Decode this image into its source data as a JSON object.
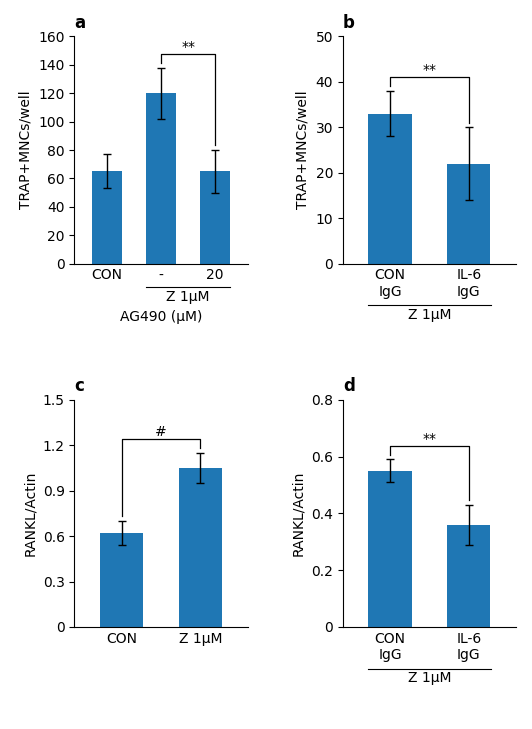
{
  "chart_data": [
    {
      "type": "bar",
      "title": "a",
      "categories": [
        "CON",
        "-",
        "20"
      ],
      "values": [
        65,
        120,
        65
      ],
      "errors": [
        12,
        18,
        15
      ],
      "ylabel": "TRAP+MNCs/well",
      "xlabel": "AG490 (μM)",
      "ylim": [
        0,
        160
      ],
      "yticks": [
        0,
        20,
        40,
        60,
        80,
        100,
        120,
        140,
        160
      ],
      "annotations": [
        {
          "kind": "group",
          "text": "Z 1μM",
          "categories": [
            "-",
            "20"
          ]
        },
        {
          "kind": "significance",
          "text": "**",
          "categories": [
            "-",
            "20"
          ]
        }
      ]
    },
    {
      "type": "bar",
      "title": "b",
      "categories": [
        "CON\nIgG",
        "IL-6\nIgG"
      ],
      "values": [
        33,
        22
      ],
      "errors": [
        5,
        8
      ],
      "ylabel": "TRAP+MNCs/well",
      "ylim": [
        0,
        50
      ],
      "yticks": [
        0,
        10,
        20,
        30,
        40,
        50
      ],
      "annotations": [
        {
          "kind": "group",
          "text": "Z 1μM",
          "categories": [
            "CON\nIgG",
            "IL-6\nIgG"
          ]
        },
        {
          "kind": "significance",
          "text": "**",
          "categories": [
            "CON\nIgG",
            "IL-6\nIgG"
          ]
        }
      ]
    },
    {
      "type": "bar",
      "title": "c",
      "categories": [
        "CON",
        "Z 1μM"
      ],
      "values": [
        0.62,
        1.05
      ],
      "errors": [
        0.08,
        0.1
      ],
      "ylabel": "RANKL/Actin",
      "ylim": [
        0,
        1.5
      ],
      "yticks": [
        0,
        0.3,
        0.6,
        0.9,
        1.2,
        1.5
      ],
      "annotations": [
        {
          "kind": "significance",
          "text": "#",
          "categories": [
            "CON",
            "Z 1μM"
          ]
        }
      ]
    },
    {
      "type": "bar",
      "title": "d",
      "categories": [
        "CON\nIgG",
        "IL-6\nIgG"
      ],
      "values": [
        0.55,
        0.36
      ],
      "errors": [
        0.04,
        0.07
      ],
      "ylabel": "RANKL/Actin",
      "ylim": [
        0,
        0.8
      ],
      "yticks": [
        0,
        0.2,
        0.4,
        0.6,
        0.8
      ],
      "annotations": [
        {
          "kind": "group",
          "text": "Z 1μM",
          "categories": [
            "CON\nIgG",
            "IL-6\nIgG"
          ]
        },
        {
          "kind": "significance",
          "text": "**",
          "categories": [
            "CON\nIgG",
            "IL-6\nIgG"
          ]
        }
      ]
    }
  ]
}
